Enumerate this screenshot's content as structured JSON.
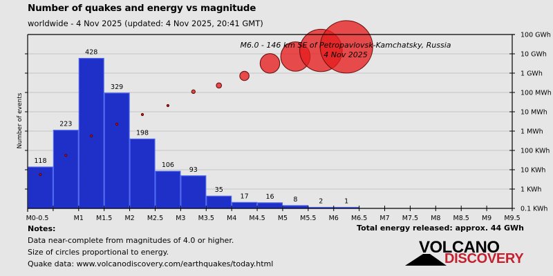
{
  "header": {
    "title": "Number of quakes and energy vs magnitude",
    "subtitle": "worldwide -  4 Nov 2025 (updated: 4 Nov 2025, 20:41 GMT)"
  },
  "chart_data": {
    "type": "bar",
    "title": "Number of quakes and energy vs magnitude",
    "xlabel": "",
    "ylabel": "Number of events",
    "y2label": "Energy",
    "x_ticks": [
      "M0-0.5",
      "M1",
      "M1.5",
      "M2",
      "M2.5",
      "M3",
      "M3.5",
      "M4",
      "M4.5",
      "M5",
      "M5.5",
      "M6",
      "M6.5",
      "M7",
      "M7.5",
      "M8",
      "M8.5",
      "M9",
      "M9.5"
    ],
    "x_tick_values": [
      0.0,
      1.0,
      1.5,
      2.0,
      2.5,
      3.0,
      3.5,
      4.0,
      4.5,
      5.0,
      5.5,
      6.0,
      6.5,
      7.0,
      7.5,
      8.0,
      8.5,
      9.0,
      9.5
    ],
    "x_range": [
      0,
      9.5
    ],
    "bins": [
      "0-0.5",
      "0.5-1",
      "1-1.5",
      "1.5-2",
      "2-2.5",
      "2.5-3",
      "3-3.5",
      "3.5-4",
      "4-4.5",
      "4.5-5",
      "5-5.5",
      "5.5-6",
      "6-6.5"
    ],
    "bin_starts": [
      0,
      0.5,
      1.0,
      1.5,
      2.0,
      2.5,
      3.0,
      3.5,
      4.0,
      4.5,
      5.0,
      5.5,
      6.0
    ],
    "series": [
      {
        "name": "Number of events",
        "type": "bar",
        "color": "#1f30c8",
        "values": [
          118,
          223,
          428,
          329,
          198,
          106,
          93,
          35,
          17,
          16,
          8,
          2,
          1
        ]
      },
      {
        "name": "Energy (kWh)",
        "type": "bubble",
        "color": "#e02020",
        "values": [
          5.6,
          56,
          560,
          2300,
          7200,
          21000,
          110000,
          230000,
          720000,
          3200000,
          7200000,
          15000000,
          23000000
        ]
      }
    ],
    "y_range": [
      0,
      496
    ],
    "y2_scale": "log",
    "y2_range_kwh": [
      0.1,
      100000000
    ],
    "y2_ticks": [
      "100 GWh",
      "10 GWh",
      "1 GWh",
      "100 MWh",
      "10 MWh",
      "1 MWh",
      "100 KWh",
      "10 KWh",
      "1 KWh",
      "0.1 KWh"
    ],
    "grid": true,
    "annotation": {
      "line1": "M6.0 - 146 km SE of Petropavlovsk-Kamchatsky, Russia",
      "line2": "4 Nov 2025"
    }
  },
  "notes": {
    "heading": "Notes:",
    "lines": [
      "Data near-complete from magnitudes of 4.0 or higher.",
      "Size of circles proportional to energy.",
      "Quake data: www.volcanodiscovery.com/earthquakes/today.html"
    ]
  },
  "total_energy": "Total energy released: approx. 44 GWh",
  "logo": {
    "line1": "VOLCANO",
    "line2": "DISCOVERY",
    "accent": "#c4202e"
  }
}
